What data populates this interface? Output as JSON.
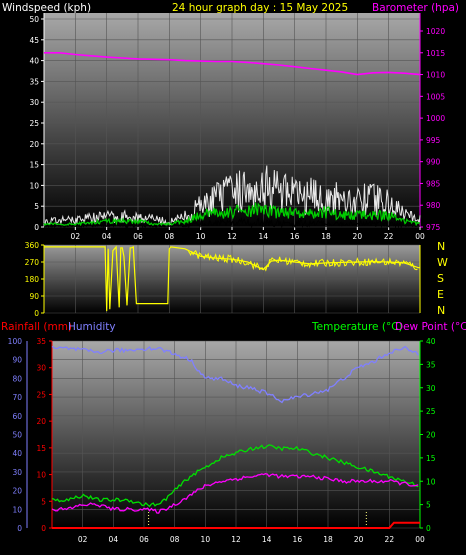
{
  "header": {
    "wind_label": "Windspeed (kph)",
    "title": "24 hour graph day : 15 May 2025",
    "baro_label": "Barometer (hpa)"
  },
  "lower_header": {
    "rain_label": "Rainfall (mm)",
    "humidity_label": "Humidity",
    "temp_label": "Temperature (°C)",
    "dew_label": "Dew Point (°C)"
  },
  "compass": [
    "N",
    "W",
    "S",
    "E",
    "N"
  ],
  "colors": {
    "wind_avg": "#00d000",
    "wind_gust": "#e8e8e8",
    "wind_black": "#000000",
    "baro": "#ff00ff",
    "wind_dir": "#ffff00",
    "temp": "#00e000",
    "dew": "#ff00ff",
    "humidity": "#8080ff",
    "rain": "#ff0000",
    "title": "#ffff00",
    "wind_axis": "#ffffff",
    "baro_axis": "#ff00ff",
    "temp_axis": "#00ff00",
    "rain_axis": "#ff0000",
    "hum_axis": "#8080ff"
  },
  "chart_data": [
    {
      "type": "line",
      "name": "wind_barometer",
      "title": "24 hour graph day : 15 May 2025",
      "x_ticks": [
        "02",
        "04",
        "06",
        "08",
        "10",
        "12",
        "14",
        "16",
        "18",
        "20",
        "22",
        "00"
      ],
      "y_left": {
        "label": "Windspeed (kph)",
        "range": [
          0,
          50
        ],
        "ticks": [
          0,
          5,
          10,
          15,
          20,
          25,
          30,
          35,
          40,
          45,
          50
        ]
      },
      "y_right": {
        "label": "Barometer (hpa)",
        "range": [
          975,
          1020
        ],
        "ticks": [
          975,
          980,
          985,
          990,
          995,
          1000,
          1005,
          1010,
          1015,
          1020
        ]
      },
      "x_range_hours": [
        0,
        24
      ],
      "series": [
        {
          "axis": "right",
          "x": [
            0,
            1,
            2,
            3,
            4,
            5,
            6,
            7,
            8,
            9,
            10,
            11,
            12,
            13,
            14,
            15,
            16,
            17,
            18,
            19,
            20,
            21,
            22,
            23,
            24
          ],
          "values": [
            1015,
            1015,
            1014.6,
            1014.3,
            1014,
            1013.8,
            1013.6,
            1013.5,
            1013.4,
            1013.2,
            1013.1,
            1013,
            1013,
            1012.8,
            1012.5,
            1012.2,
            1011.8,
            1011.4,
            1011,
            1010.6,
            1010,
            1010.4,
            1010.5,
            1010.3,
            1010
          ]
        },
        {
          "axis": "left",
          "x": [
            0,
            2,
            4,
            6,
            7,
            8,
            9,
            10,
            11,
            12,
            13,
            14,
            15,
            16,
            17,
            18,
            19,
            20,
            21,
            22,
            23,
            24
          ],
          "values": [
            2,
            3,
            4,
            4,
            3,
            2,
            4,
            8,
            11,
            13,
            15,
            17,
            14,
            12,
            12,
            11,
            11,
            10,
            11,
            9,
            5,
            3
          ]
        },
        {
          "axis": "left",
          "x": [
            0,
            2,
            4,
            6,
            7,
            8,
            9,
            10,
            11,
            12,
            13,
            14,
            15,
            16,
            17,
            18,
            19,
            20,
            21,
            22,
            23,
            24
          ],
          "values": [
            1,
            1,
            2,
            2,
            1,
            1,
            2,
            4,
            5,
            5,
            6,
            6,
            5,
            5,
            5,
            5,
            4,
            4,
            4,
            4,
            2,
            1
          ]
        }
      ]
    },
    {
      "type": "line",
      "name": "wind_direction",
      "x_range_hours": [
        0,
        24
      ],
      "y_range": [
        0,
        360
      ],
      "y_ticks": [
        0,
        90,
        180,
        270,
        360
      ],
      "series": [
        {
          "x": [
            0,
            3.9,
            4.0,
            4.1,
            4.2,
            4.4,
            4.6,
            4.8,
            4.9,
            5.0,
            5.1,
            5.3,
            5.5,
            5.6,
            5.7,
            5.9,
            6.0,
            7.9,
            8.0,
            8.1,
            9.0,
            10,
            11,
            12,
            13,
            13.5,
            14,
            14.5,
            15,
            16,
            17,
            18,
            19,
            20,
            21,
            22,
            23,
            23.9,
            24
          ],
          "values": [
            350,
            350,
            10,
            340,
            20,
            330,
            350,
            30,
            345,
            345,
            300,
            40,
            345,
            345,
            350,
            50,
            50,
            50,
            340,
            350,
            340,
            300,
            290,
            285,
            270,
            250,
            230,
            275,
            280,
            270,
            260,
            265,
            268,
            270,
            272,
            270,
            265,
            240,
            240
          ]
        }
      ]
    },
    {
      "type": "line",
      "name": "temperature_humidity_rain",
      "x_ticks": [
        "02",
        "04",
        "06",
        "08",
        "10",
        "12",
        "14",
        "16",
        "18",
        "20",
        "22",
        "00"
      ],
      "x_range_hours": [
        0,
        24
      ],
      "y_rain": {
        "label": "Rainfall (mm)",
        "range": [
          0,
          35
        ],
        "ticks": [
          0,
          5,
          10,
          15,
          20,
          25,
          30,
          35
        ]
      },
      "y_humidity": {
        "label": "Humidity",
        "range": [
          0,
          100
        ],
        "ticks": [
          0,
          10,
          20,
          30,
          40,
          50,
          60,
          70,
          80,
          90,
          100
        ]
      },
      "y_temp": {
        "label": "Temperature (°C)",
        "range": [
          0,
          40
        ],
        "ticks": [
          0,
          5,
          10,
          15,
          20,
          25,
          30,
          35,
          40
        ]
      },
      "series": [
        {
          "axis": "temp",
          "x": [
            0,
            1,
            2,
            3,
            4,
            5,
            6,
            7,
            8,
            9,
            10,
            11,
            12,
            13,
            14,
            15,
            16,
            17,
            18,
            19,
            20,
            21,
            22,
            23,
            24
          ],
          "values": [
            6,
            6,
            7,
            6,
            6,
            6,
            5,
            5,
            8,
            11,
            13,
            15,
            16,
            17,
            17.5,
            17,
            17,
            16,
            15,
            14,
            13,
            12,
            11,
            10,
            9
          ]
        },
        {
          "axis": "temp",
          "x": [
            0,
            1,
            2,
            3,
            4,
            5,
            6,
            7,
            8,
            9,
            10,
            11,
            12,
            13,
            14,
            15,
            16,
            17,
            18,
            19,
            20,
            21,
            22,
            23,
            24
          ],
          "values": [
            4,
            4,
            5,
            5,
            4,
            4,
            4,
            3.5,
            5,
            7,
            9,
            10,
            10.5,
            11,
            11.5,
            11,
            11,
            11,
            10.5,
            10,
            10,
            10,
            10,
            9.5,
            9
          ]
        },
        {
          "axis": "humidity",
          "x": [
            0,
            1,
            2,
            3,
            4,
            5,
            6,
            7,
            8,
            9,
            10,
            11,
            12,
            13,
            14,
            15,
            16,
            17,
            18,
            19,
            20,
            21,
            22,
            23,
            24
          ],
          "values": [
            96,
            96,
            95,
            94,
            95,
            95,
            96,
            96,
            93,
            90,
            80,
            80,
            76,
            75,
            72,
            68,
            70,
            72,
            74,
            80,
            86,
            89,
            94,
            96,
            93
          ]
        },
        {
          "axis": "rain",
          "x": [
            0,
            22,
            22.3,
            23.5,
            24
          ],
          "values": [
            0,
            0,
            1,
            1,
            1
          ]
        }
      ]
    }
  ]
}
